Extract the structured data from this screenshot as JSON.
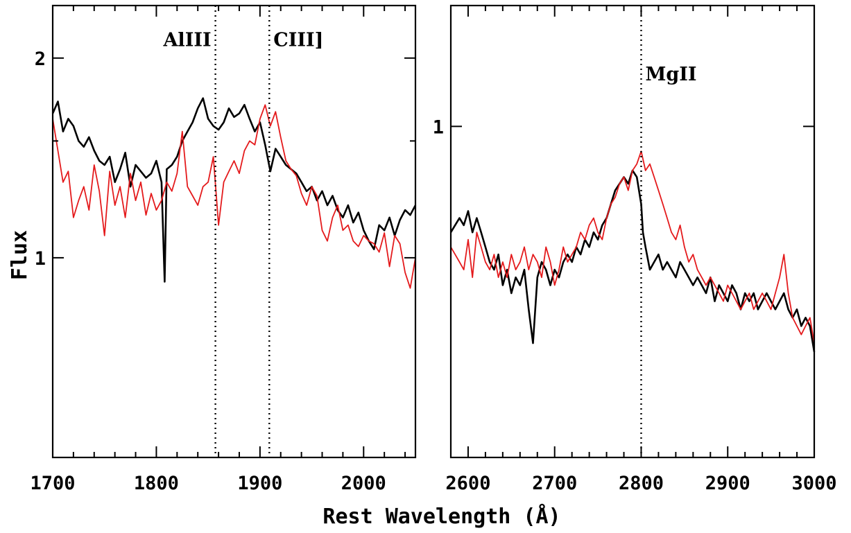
{
  "chart_data": [
    {
      "type": "line",
      "panel": "left",
      "xlim": [
        1700,
        2050
      ],
      "ylim": [
        0.5,
        2.4
      ],
      "ylog": true,
      "x_ticks": [
        1700,
        1800,
        1900,
        2000
      ],
      "y_ticks": [
        1,
        2
      ],
      "y_minor_ticks": [
        0.5,
        1.5
      ],
      "xlabel": "Rest Wavelength (Å)",
      "ylabel": "Flux",
      "vlines": [
        1857,
        1909
      ],
      "annotations": [
        {
          "text": "AlIII",
          "x": 1857,
          "y": 2.13
        },
        {
          "text": "CIII]",
          "x": 1909,
          "y": 2.13
        }
      ],
      "series": [
        {
          "color": "#000000",
          "x": [
            1700,
            1705,
            1710,
            1715,
            1720,
            1725,
            1730,
            1735,
            1740,
            1745,
            1750,
            1755,
            1760,
            1765,
            1770,
            1775,
            1780,
            1785,
            1790,
            1795,
            1800,
            1805,
            1808,
            1810,
            1815,
            1820,
            1825,
            1830,
            1835,
            1840,
            1845,
            1850,
            1855,
            1860,
            1865,
            1870,
            1875,
            1880,
            1885,
            1890,
            1895,
            1900,
            1905,
            1908,
            1910,
            1915,
            1920,
            1925,
            1930,
            1935,
            1940,
            1945,
            1950,
            1955,
            1960,
            1965,
            1970,
            1975,
            1980,
            1985,
            1990,
            1995,
            2000,
            2005,
            2010,
            2015,
            2020,
            2025,
            2030,
            2035,
            2040,
            2045,
            2050
          ],
          "y": [
            1.65,
            1.72,
            1.55,
            1.62,
            1.58,
            1.5,
            1.47,
            1.52,
            1.45,
            1.4,
            1.38,
            1.42,
            1.3,
            1.36,
            1.44,
            1.28,
            1.38,
            1.35,
            1.32,
            1.34,
            1.4,
            1.3,
            0.92,
            1.36,
            1.38,
            1.42,
            1.5,
            1.55,
            1.6,
            1.68,
            1.74,
            1.62,
            1.58,
            1.56,
            1.6,
            1.68,
            1.63,
            1.65,
            1.7,
            1.62,
            1.55,
            1.6,
            1.48,
            1.4,
            1.35,
            1.46,
            1.42,
            1.38,
            1.36,
            1.34,
            1.3,
            1.26,
            1.28,
            1.22,
            1.26,
            1.2,
            1.24,
            1.18,
            1.15,
            1.2,
            1.13,
            1.17,
            1.1,
            1.06,
            1.03,
            1.12,
            1.1,
            1.15,
            1.08,
            1.14,
            1.18,
            1.16,
            1.2
          ]
        },
        {
          "color": "#e41a1c",
          "x": [
            1700,
            1705,
            1710,
            1715,
            1720,
            1725,
            1730,
            1735,
            1740,
            1745,
            1750,
            1755,
            1760,
            1765,
            1770,
            1775,
            1780,
            1785,
            1790,
            1795,
            1800,
            1805,
            1810,
            1815,
            1820,
            1825,
            1830,
            1835,
            1840,
            1845,
            1850,
            1855,
            1860,
            1865,
            1870,
            1875,
            1880,
            1885,
            1890,
            1895,
            1900,
            1905,
            1910,
            1915,
            1920,
            1925,
            1930,
            1935,
            1940,
            1945,
            1950,
            1955,
            1960,
            1965,
            1970,
            1975,
            1980,
            1985,
            1990,
            1995,
            2000,
            2005,
            2010,
            2015,
            2020,
            2025,
            2030,
            2035,
            2040,
            2045,
            2050
          ],
          "y": [
            1.62,
            1.45,
            1.3,
            1.35,
            1.15,
            1.22,
            1.28,
            1.18,
            1.38,
            1.26,
            1.08,
            1.35,
            1.2,
            1.28,
            1.15,
            1.34,
            1.22,
            1.3,
            1.16,
            1.25,
            1.18,
            1.22,
            1.3,
            1.26,
            1.34,
            1.55,
            1.28,
            1.24,
            1.2,
            1.28,
            1.3,
            1.42,
            1.12,
            1.3,
            1.35,
            1.4,
            1.34,
            1.45,
            1.5,
            1.48,
            1.62,
            1.7,
            1.58,
            1.66,
            1.52,
            1.4,
            1.36,
            1.33,
            1.25,
            1.2,
            1.28,
            1.24,
            1.1,
            1.06,
            1.15,
            1.2,
            1.1,
            1.12,
            1.06,
            1.04,
            1.08,
            1.06,
            1.05,
            1.02,
            1.09,
            0.97,
            1.08,
            1.05,
            0.95,
            0.9,
            1.0
          ]
        }
      ]
    },
    {
      "type": "line",
      "panel": "right",
      "xlim": [
        2580,
        3000
      ],
      "ylim": [
        0.58,
        1.22
      ],
      "ylog": true,
      "x_ticks": [
        2600,
        2700,
        2800,
        2900,
        3000
      ],
      "y_ticks": [
        1
      ],
      "xlabel": "Rest Wavelength (Å)",
      "vlines": [
        2800
      ],
      "annotations": [
        {
          "text": "MgII",
          "x": 2800,
          "y": 1.09
        }
      ],
      "series": [
        {
          "color": "#000000",
          "x": [
            2580,
            2585,
            2590,
            2595,
            2600,
            2605,
            2610,
            2615,
            2620,
            2625,
            2630,
            2635,
            2640,
            2645,
            2650,
            2655,
            2660,
            2665,
            2670,
            2675,
            2680,
            2685,
            2690,
            2695,
            2700,
            2705,
            2710,
            2715,
            2720,
            2725,
            2730,
            2735,
            2740,
            2745,
            2750,
            2755,
            2760,
            2765,
            2770,
            2775,
            2780,
            2785,
            2790,
            2795,
            2800,
            2802,
            2805,
            2810,
            2815,
            2820,
            2825,
            2830,
            2835,
            2840,
            2845,
            2850,
            2855,
            2860,
            2865,
            2870,
            2875,
            2880,
            2885,
            2890,
            2895,
            2900,
            2905,
            2910,
            2915,
            2920,
            2925,
            2930,
            2935,
            2940,
            2945,
            2950,
            2955,
            2960,
            2965,
            2970,
            2975,
            2980,
            2985,
            2990,
            2995,
            3000
          ],
          "y": [
            0.84,
            0.85,
            0.86,
            0.85,
            0.87,
            0.84,
            0.86,
            0.84,
            0.82,
            0.8,
            0.79,
            0.81,
            0.77,
            0.79,
            0.76,
            0.78,
            0.77,
            0.79,
            0.74,
            0.7,
            0.78,
            0.8,
            0.79,
            0.77,
            0.79,
            0.78,
            0.8,
            0.81,
            0.8,
            0.82,
            0.81,
            0.83,
            0.82,
            0.84,
            0.83,
            0.85,
            0.86,
            0.88,
            0.9,
            0.91,
            0.92,
            0.91,
            0.93,
            0.92,
            0.88,
            0.84,
            0.82,
            0.79,
            0.8,
            0.81,
            0.79,
            0.8,
            0.79,
            0.78,
            0.8,
            0.79,
            0.78,
            0.77,
            0.78,
            0.77,
            0.76,
            0.78,
            0.75,
            0.77,
            0.76,
            0.75,
            0.77,
            0.76,
            0.74,
            0.76,
            0.75,
            0.76,
            0.74,
            0.75,
            0.76,
            0.75,
            0.74,
            0.75,
            0.76,
            0.74,
            0.73,
            0.74,
            0.72,
            0.73,
            0.72,
            0.69
          ]
        },
        {
          "color": "#e41a1c",
          "x": [
            2580,
            2585,
            2590,
            2595,
            2600,
            2605,
            2610,
            2615,
            2620,
            2625,
            2630,
            2635,
            2640,
            2645,
            2650,
            2655,
            2660,
            2665,
            2670,
            2675,
            2680,
            2685,
            2690,
            2695,
            2700,
            2705,
            2710,
            2715,
            2720,
            2725,
            2730,
            2735,
            2740,
            2745,
            2750,
            2755,
            2760,
            2765,
            2770,
            2775,
            2780,
            2785,
            2790,
            2795,
            2800,
            2805,
            2810,
            2815,
            2820,
            2825,
            2830,
            2835,
            2840,
            2845,
            2850,
            2855,
            2860,
            2865,
            2870,
            2875,
            2880,
            2885,
            2890,
            2895,
            2900,
            2905,
            2910,
            2915,
            2920,
            2925,
            2930,
            2935,
            2940,
            2945,
            2950,
            2955,
            2960,
            2965,
            2970,
            2975,
            2980,
            2985,
            2990,
            2995,
            3000
          ],
          "y": [
            0.82,
            0.81,
            0.8,
            0.79,
            0.83,
            0.78,
            0.84,
            0.82,
            0.8,
            0.79,
            0.81,
            0.78,
            0.8,
            0.78,
            0.81,
            0.79,
            0.8,
            0.82,
            0.79,
            0.81,
            0.8,
            0.78,
            0.82,
            0.8,
            0.77,
            0.79,
            0.82,
            0.8,
            0.81,
            0.82,
            0.84,
            0.83,
            0.85,
            0.86,
            0.84,
            0.83,
            0.86,
            0.88,
            0.89,
            0.91,
            0.92,
            0.9,
            0.93,
            0.94,
            0.96,
            0.93,
            0.94,
            0.92,
            0.9,
            0.88,
            0.86,
            0.84,
            0.83,
            0.85,
            0.82,
            0.8,
            0.81,
            0.79,
            0.78,
            0.77,
            0.78,
            0.77,
            0.76,
            0.75,
            0.77,
            0.76,
            0.75,
            0.74,
            0.75,
            0.76,
            0.74,
            0.75,
            0.76,
            0.75,
            0.74,
            0.76,
            0.78,
            0.81,
            0.76,
            0.73,
            0.72,
            0.71,
            0.72,
            0.73,
            0.7
          ]
        }
      ]
    }
  ]
}
